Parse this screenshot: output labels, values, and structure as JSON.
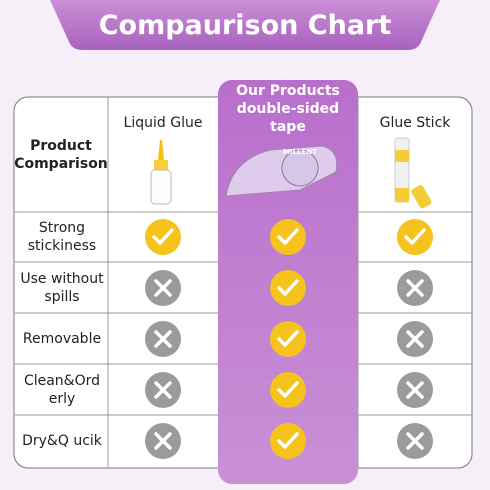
{
  "header": {
    "title": "Compaurison Chart"
  },
  "table": {
    "columns": [
      "Product\nComparison",
      "Liquid Glue",
      "Our Products\ndouble-sided tape",
      "Glue Stick"
    ],
    "rows": [
      {
        "label": "Strong\nstickiness",
        "marks": [
          true,
          true,
          true
        ]
      },
      {
        "label": "Use without\nspills",
        "marks": [
          false,
          true,
          false
        ]
      },
      {
        "label": "Removable",
        "marks": [
          false,
          true,
          false
        ]
      },
      {
        "label": "Clean&Ord\nerly",
        "marks": [
          false,
          true,
          false
        ]
      },
      {
        "label": "Dry&Q ucik",
        "marks": [
          false,
          true,
          false
        ]
      }
    ]
  }
}
